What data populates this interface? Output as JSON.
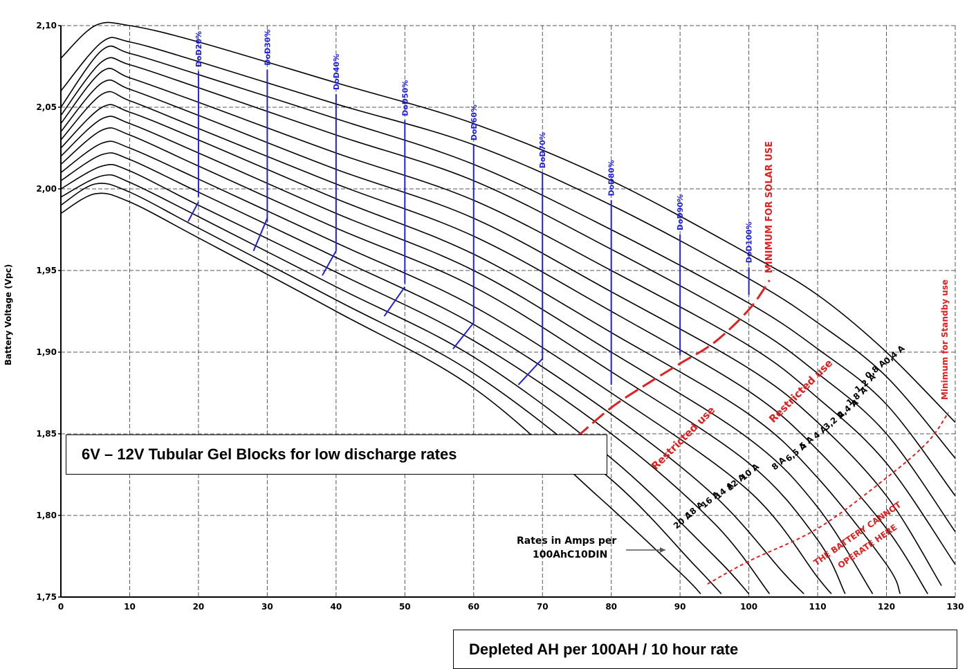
{
  "chart_data": {
    "type": "line",
    "title": "6V – 12V Tubular Gel Blocks for low discharge rates",
    "xlabel": "Depleted AH per 100AH / 10 hour rate",
    "ylabel": "Battery Voltage (Vpc)",
    "xlim": [
      0,
      130
    ],
    "ylim": [
      1.75,
      2.1
    ],
    "x_ticks": [
      "0",
      "10",
      "20",
      "30",
      "40",
      "50",
      "60",
      "70",
      "80",
      "90",
      "100",
      "110",
      "120",
      "130"
    ],
    "y_ticks": [
      "1,75",
      "1,80",
      "1,85",
      "1,90",
      "1,95",
      "2,00",
      "2,05",
      "2,10"
    ],
    "grid": true,
    "series": [
      {
        "name": "0,4 A",
        "points": [
          [
            0,
            2.08
          ],
          [
            5,
            2.1
          ],
          [
            10,
            2.1
          ],
          [
            20,
            2.09
          ],
          [
            40,
            2.065
          ],
          [
            60,
            2.04
          ],
          [
            80,
            2.005
          ],
          [
            100,
            1.96
          ],
          [
            110,
            1.935
          ],
          [
            120,
            1.9
          ],
          [
            130,
            1.857
          ]
        ]
      },
      {
        "name": "0,8 A",
        "points": [
          [
            0,
            2.06
          ],
          [
            6,
            2.09
          ],
          [
            10,
            2.09
          ],
          [
            20,
            2.078
          ],
          [
            40,
            2.052
          ],
          [
            60,
            2.027
          ],
          [
            80,
            1.99
          ],
          [
            100,
            1.945
          ],
          [
            110,
            1.918
          ],
          [
            120,
            1.885
          ],
          [
            130,
            1.835
          ]
        ]
      },
      {
        "name": "1,2 A",
        "points": [
          [
            0,
            2.05
          ],
          [
            6,
            2.085
          ],
          [
            10,
            2.083
          ],
          [
            20,
            2.07
          ],
          [
            40,
            2.043
          ],
          [
            60,
            2.015
          ],
          [
            80,
            1.975
          ],
          [
            100,
            1.93
          ],
          [
            110,
            1.902
          ],
          [
            120,
            1.868
          ],
          [
            130,
            1.812
          ]
        ]
      },
      {
        "name": "1,8 A",
        "points": [
          [
            0,
            2.045
          ],
          [
            6,
            2.078
          ],
          [
            10,
            2.076
          ],
          [
            20,
            2.062
          ],
          [
            40,
            2.033
          ],
          [
            60,
            2.005
          ],
          [
            80,
            1.963
          ],
          [
            100,
            1.917
          ],
          [
            110,
            1.887
          ],
          [
            120,
            1.85
          ],
          [
            130,
            1.79
          ]
        ]
      },
      {
        "name": "2,4 A",
        "points": [
          [
            0,
            2.04
          ],
          [
            6,
            2.072
          ],
          [
            10,
            2.068
          ],
          [
            20,
            2.053
          ],
          [
            40,
            2.022
          ],
          [
            60,
            1.993
          ],
          [
            80,
            1.95
          ],
          [
            100,
            1.904
          ],
          [
            110,
            1.872
          ],
          [
            120,
            1.832
          ],
          [
            130,
            1.77
          ]
        ]
      },
      {
        "name": "3,2 A",
        "points": [
          [
            0,
            2.035
          ],
          [
            6,
            2.065
          ],
          [
            10,
            2.061
          ],
          [
            20,
            2.045
          ],
          [
            40,
            2.012
          ],
          [
            60,
            1.982
          ],
          [
            80,
            1.937
          ],
          [
            100,
            1.89
          ],
          [
            110,
            1.857
          ],
          [
            120,
            1.812
          ],
          [
            128,
            1.757
          ]
        ]
      },
      {
        "name": "4 A",
        "points": [
          [
            0,
            2.03
          ],
          [
            6,
            2.058
          ],
          [
            10,
            2.054
          ],
          [
            20,
            2.037
          ],
          [
            40,
            2.003
          ],
          [
            60,
            1.971
          ],
          [
            80,
            1.925
          ],
          [
            100,
            1.876
          ],
          [
            110,
            1.84
          ],
          [
            120,
            1.792
          ],
          [
            126,
            1.752
          ]
        ]
      },
      {
        "name": "5 A",
        "points": [
          [
            0,
            2.025
          ],
          [
            6,
            2.05
          ],
          [
            10,
            2.047
          ],
          [
            20,
            2.03
          ],
          [
            40,
            1.994
          ],
          [
            60,
            1.96
          ],
          [
            80,
            1.912
          ],
          [
            100,
            1.862
          ],
          [
            110,
            1.823
          ],
          [
            120,
            1.77
          ],
          [
            122,
            1.752
          ]
        ]
      },
      {
        "name": "6,5 A",
        "points": [
          [
            0,
            2.02
          ],
          [
            6,
            2.043
          ],
          [
            10,
            2.04
          ],
          [
            20,
            2.022
          ],
          [
            40,
            1.985
          ],
          [
            60,
            1.95
          ],
          [
            80,
            1.9
          ],
          [
            100,
            1.847
          ],
          [
            110,
            1.805
          ],
          [
            118,
            1.752
          ]
        ]
      },
      {
        "name": "8 A",
        "points": [
          [
            0,
            2.015
          ],
          [
            6,
            2.036
          ],
          [
            10,
            2.033
          ],
          [
            20,
            2.014
          ],
          [
            40,
            1.976
          ],
          [
            60,
            1.94
          ],
          [
            80,
            1.888
          ],
          [
            100,
            1.832
          ],
          [
            110,
            1.785
          ],
          [
            114,
            1.752
          ]
        ]
      },
      {
        "name": "10 A",
        "points": [
          [
            0,
            2.01
          ],
          [
            6,
            2.028
          ],
          [
            10,
            2.025
          ],
          [
            20,
            2.006
          ],
          [
            40,
            1.967
          ],
          [
            60,
            1.928
          ],
          [
            80,
            1.875
          ],
          [
            100,
            1.815
          ],
          [
            110,
            1.762
          ],
          [
            112,
            1.752
          ]
        ]
      },
      {
        "name": "12 A",
        "points": [
          [
            0,
            2.005
          ],
          [
            6,
            2.021
          ],
          [
            10,
            2.018
          ],
          [
            20,
            1.998
          ],
          [
            40,
            1.958
          ],
          [
            60,
            1.917
          ],
          [
            80,
            1.862
          ],
          [
            95,
            1.812
          ],
          [
            105,
            1.765
          ],
          [
            108,
            1.752
          ]
        ]
      },
      {
        "name": "14 A",
        "points": [
          [
            0,
            2.0
          ],
          [
            6,
            2.014
          ],
          [
            10,
            2.011
          ],
          [
            20,
            1.99
          ],
          [
            40,
            1.949
          ],
          [
            60,
            1.907
          ],
          [
            80,
            1.85
          ],
          [
            95,
            1.795
          ],
          [
            103,
            1.752
          ]
        ]
      },
      {
        "name": "16 A",
        "points": [
          [
            0,
            1.995
          ],
          [
            6,
            2.008
          ],
          [
            10,
            2.004
          ],
          [
            20,
            1.983
          ],
          [
            40,
            1.94
          ],
          [
            60,
            1.897
          ],
          [
            80,
            1.835
          ],
          [
            95,
            1.775
          ],
          [
            100,
            1.752
          ]
        ]
      },
      {
        "name": "18 A",
        "points": [
          [
            0,
            1.99
          ],
          [
            5,
            2.003
          ],
          [
            10,
            1.998
          ],
          [
            20,
            1.976
          ],
          [
            40,
            1.932
          ],
          [
            60,
            1.887
          ],
          [
            80,
            1.822
          ],
          [
            92,
            1.77
          ],
          [
            96,
            1.752
          ]
        ]
      },
      {
        "name": "20 A",
        "points": [
          [
            0,
            1.985
          ],
          [
            5,
            1.997
          ],
          [
            10,
            1.992
          ],
          [
            20,
            1.97
          ],
          [
            40,
            1.925
          ],
          [
            60,
            1.878
          ],
          [
            78,
            1.812
          ],
          [
            90,
            1.765
          ],
          [
            93,
            1.752
          ]
        ]
      }
    ],
    "dod_labels": [
      {
        "label": "DoD20%",
        "x": 20,
        "y_top": 2.072,
        "y_bottom": 1.995
      },
      {
        "label": "DoD30%",
        "x": 30,
        "y_top": 2.073,
        "y_bottom": 1.98
      },
      {
        "label": "DoD40%",
        "x": 40,
        "y_top": 2.058,
        "y_bottom": 1.962
      },
      {
        "label": "DoD50%",
        "x": 50,
        "y_top": 2.042,
        "y_bottom": 1.942
      },
      {
        "label": "DoD60%",
        "x": 60,
        "y_top": 2.027,
        "y_bottom": 1.918
      },
      {
        "label": "DoD70%",
        "x": 70,
        "y_top": 2.01,
        "y_bottom": 1.895
      },
      {
        "label": "DoD80%",
        "x": 80,
        "y_top": 1.993,
        "y_bottom": 1.88
      },
      {
        "label": "DoD90%",
        "x": 90,
        "y_top": 1.972,
        "y_bottom": 1.898
      },
      {
        "label": "DoD100%",
        "x": 100,
        "y_top": 1.952,
        "y_bottom": 1.935
      }
    ],
    "annotations": {
      "solar_min": "MINIMUM FOR SOLAR USE",
      "standby_min": "Minimum for Standby use",
      "restricted_1": "Restricted use",
      "restricted_2": "Restricted use",
      "cannot_1": "THE BATTERY CANNOT",
      "cannot_2": "OPERATE HERE",
      "rates_1": "Rates in Amps per",
      "rates_2": "100AhC10DIN"
    },
    "colors": {
      "curve": "#000000",
      "dod": "#2020e0",
      "red": "#e02020",
      "grid": "#555555"
    }
  }
}
